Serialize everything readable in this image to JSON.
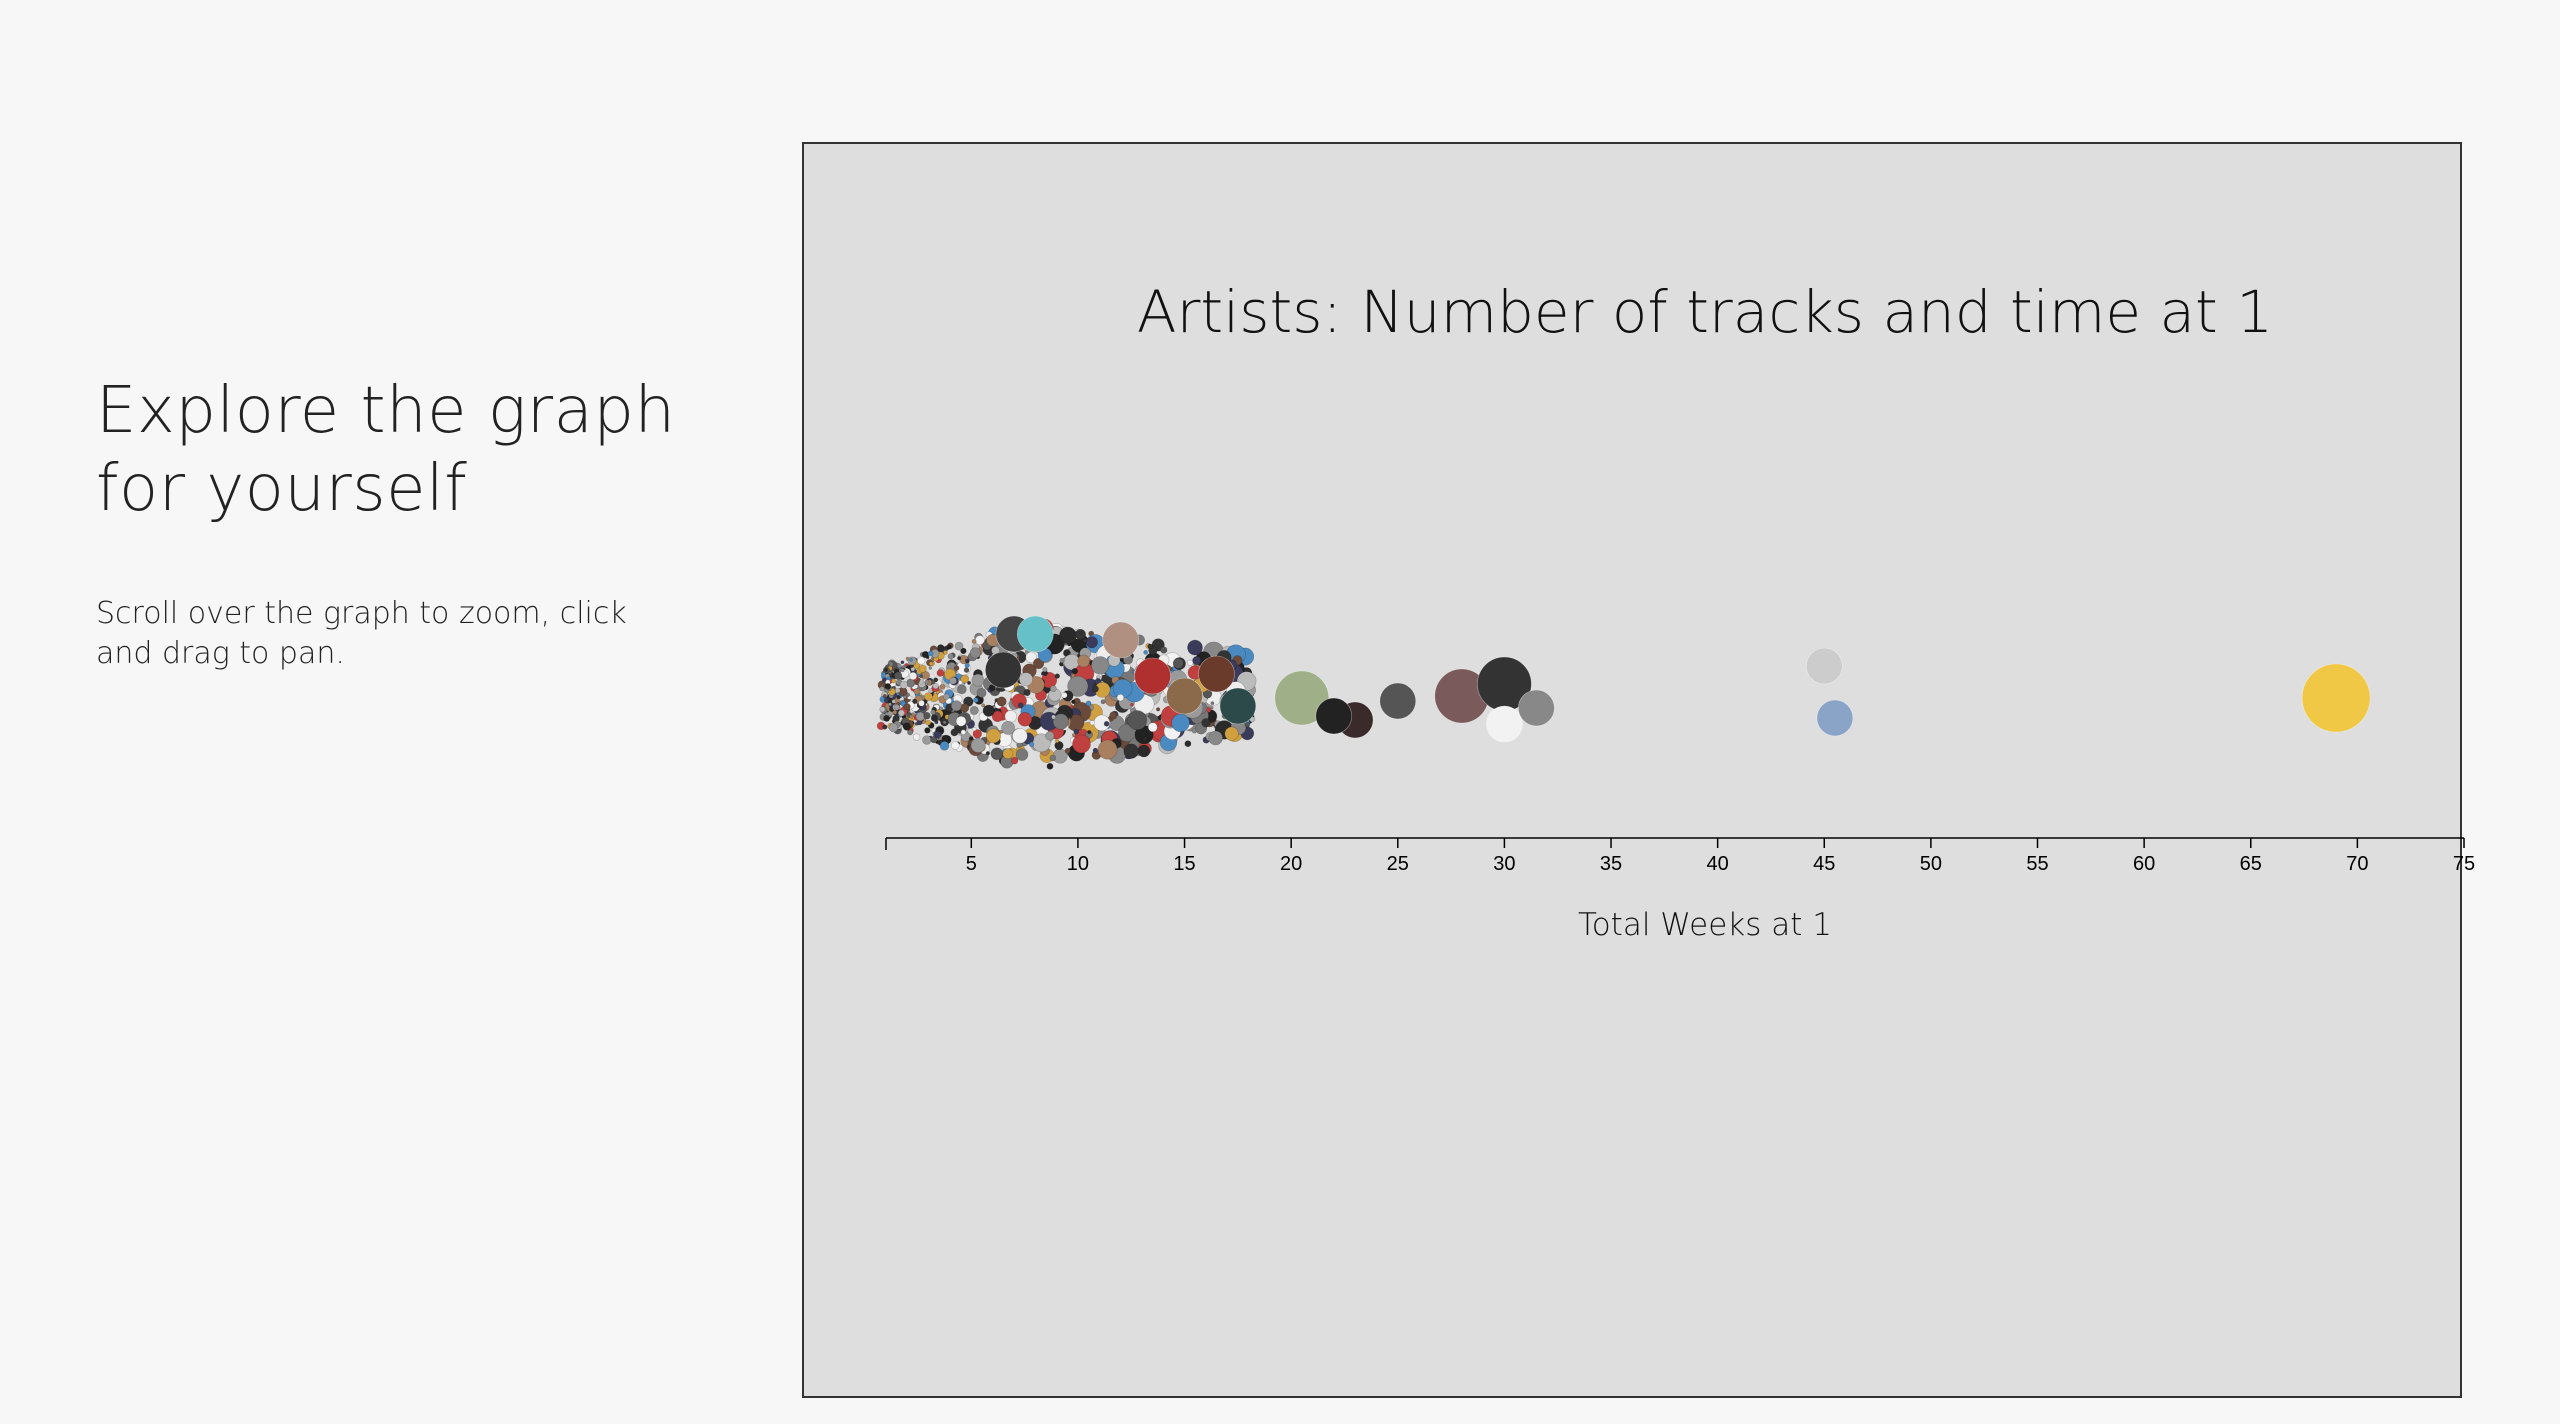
{
  "intro": {
    "heading": "Explore the graph for yourself",
    "instructions": "Scroll over the graph to zoom, click and drag to pan."
  },
  "colors": {
    "page_background": "#f7f7f7",
    "chart_background": "#dedede",
    "frame_border": "#333333",
    "axis": "#000000"
  },
  "chart_data": {
    "type": "scatter",
    "subtype": "bubble-swarm",
    "title": "Artists: Number of tracks and time at 1",
    "xlabel": "Total Weeks at 1",
    "ylabel": "",
    "xlim": [
      1,
      75
    ],
    "xticks": [
      5,
      10,
      15,
      20,
      25,
      30,
      35,
      40,
      45,
      50,
      55,
      60,
      65,
      70,
      75
    ],
    "grid": false,
    "legend": "none",
    "series": [
      {
        "points": [
          {
            "x": 28,
            "size": 2,
            "color": "#7a5a5a"
          },
          {
            "x": 30,
            "size": 2,
            "color": "#333333"
          },
          {
            "x": 30,
            "size": 1,
            "color": "#f2f2f2"
          },
          {
            "x": 31.5,
            "size": 1,
            "color": "#888888"
          },
          {
            "x": 45,
            "size": 1,
            "color": "#cccccc"
          },
          {
            "x": 45.5,
            "size": 1,
            "color": "#8aa4c8"
          },
          {
            "x": 69,
            "size": 3,
            "color": "#f0c845"
          },
          {
            "x": 25,
            "size": 1,
            "color": "#555555"
          },
          {
            "x": 23,
            "size": 1,
            "color": "#3a2a2a"
          },
          {
            "x": 20.5,
            "size": 2,
            "color": "#9fb088"
          },
          {
            "x": 22,
            "size": 1,
            "color": "#222222"
          },
          {
            "x": 17.5,
            "size": 1,
            "color": "#2d4a4a"
          },
          {
            "x": 16.5,
            "size": 1,
            "color": "#6a3a2a"
          },
          {
            "x": 15,
            "size": 1,
            "color": "#8a6a4a"
          },
          {
            "x": 13.5,
            "size": 1,
            "color": "#b03030"
          },
          {
            "x": 12,
            "size": 1,
            "color": "#b09080"
          },
          {
            "x": 7,
            "size": 1,
            "color": "#444444"
          },
          {
            "x": 8,
            "size": 1,
            "color": "#66c0c8"
          },
          {
            "x": 6.5,
            "size": 1,
            "color": "#333333"
          }
        ]
      }
    ]
  }
}
